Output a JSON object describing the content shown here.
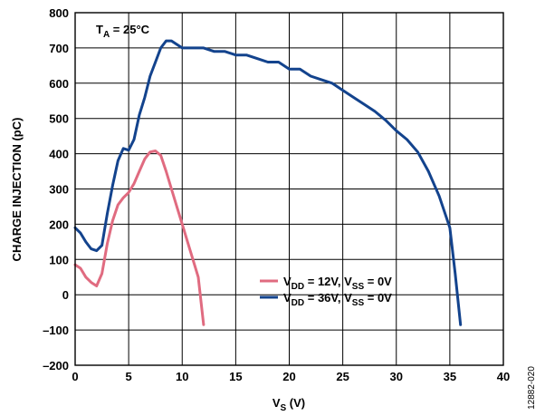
{
  "chart_data": {
    "type": "line",
    "xlabel": {
      "main": "V",
      "sub": "S",
      "unit": " (V)"
    },
    "ylabel": "CHARGE INJECTION (pC)",
    "xlim": [
      0,
      40
    ],
    "ylim": [
      -200,
      800
    ],
    "x_ticks": [
      0,
      5,
      10,
      15,
      20,
      25,
      30,
      35,
      40
    ],
    "y_ticks": [
      -200,
      -100,
      0,
      100,
      200,
      300,
      400,
      500,
      600,
      700,
      800
    ],
    "y_tick_labels": [
      "–200",
      "–100",
      "0",
      "100",
      "200",
      "300",
      "400",
      "500",
      "600",
      "700",
      "800"
    ],
    "grid": true,
    "legend_placement": "bottom-right",
    "annotation": {
      "t": "T",
      "sub": "A",
      "rest": " = 25°C"
    },
    "figure_id": "12882-020",
    "series": [
      {
        "label_parts": [
          {
            "t": "V"
          },
          {
            "t": "DD",
            "sub": true
          },
          {
            "t": " = 12V, V"
          },
          {
            "t": "SS",
            "sub": true
          },
          {
            "t": " = 0V"
          }
        ],
        "color": "#e06b80",
        "x": [
          0,
          0.5,
          1,
          1.5,
          2,
          2.5,
          3,
          3.5,
          4,
          4.5,
          5,
          5.5,
          6,
          6.5,
          7,
          7.5,
          8,
          8.5,
          9,
          9.5,
          10,
          10.5,
          11,
          11.5,
          12
        ],
        "values": [
          85,
          75,
          50,
          35,
          25,
          60,
          145,
          210,
          255,
          275,
          290,
          315,
          350,
          385,
          405,
          408,
          395,
          350,
          300,
          250,
          200,
          150,
          100,
          50,
          -85
        ]
      },
      {
        "label_parts": [
          {
            "t": "V"
          },
          {
            "t": "DD",
            "sub": true
          },
          {
            "t": " = 36V, V"
          },
          {
            "t": "SS",
            "sub": true
          },
          {
            "t": " = 0V"
          }
        ],
        "color": "#13438d",
        "x": [
          0,
          0.5,
          1,
          1.5,
          2,
          2.5,
          3,
          3.5,
          4,
          4.5,
          5,
          5.5,
          6,
          6.5,
          7,
          7.5,
          8,
          8.5,
          9,
          9.5,
          10,
          11,
          12,
          13,
          14,
          15,
          16,
          17,
          18,
          19,
          20,
          21,
          22,
          23,
          24,
          25,
          26,
          27,
          28,
          29,
          30,
          31,
          32,
          33,
          34,
          35,
          35.5,
          36
        ],
        "values": [
          190,
          175,
          150,
          130,
          125,
          140,
          230,
          310,
          380,
          415,
          410,
          440,
          510,
          560,
          620,
          660,
          700,
          720,
          720,
          710,
          700,
          700,
          700,
          690,
          690,
          680,
          680,
          670,
          660,
          660,
          640,
          640,
          620,
          610,
          600,
          580,
          560,
          540,
          520,
          495,
          465,
          440,
          405,
          350,
          280,
          190,
          60,
          -85
        ]
      }
    ]
  }
}
